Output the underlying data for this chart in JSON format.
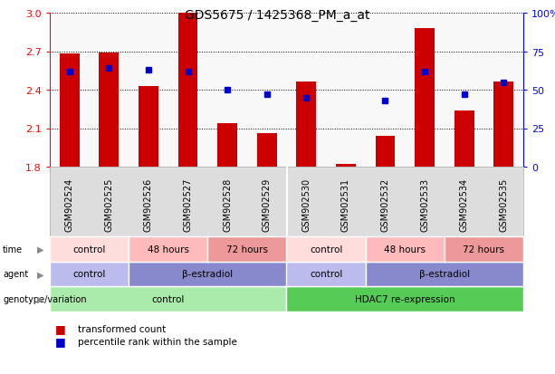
{
  "title": "GDS5675 / 1425368_PM_a_at",
  "samples": [
    "GSM902524",
    "GSM902525",
    "GSM902526",
    "GSM902527",
    "GSM902528",
    "GSM902529",
    "GSM902530",
    "GSM902531",
    "GSM902532",
    "GSM902533",
    "GSM902534",
    "GSM902535"
  ],
  "bar_values": [
    2.68,
    2.69,
    2.43,
    3.01,
    2.14,
    2.06,
    2.46,
    1.82,
    2.04,
    2.88,
    2.24,
    2.46
  ],
  "dot_values": [
    62,
    64,
    63,
    62,
    50,
    47,
    45,
    null,
    43,
    62,
    47,
    55
  ],
  "ymin": 1.8,
  "ymax": 3.0,
  "yticks": [
    1.8,
    2.1,
    2.4,
    2.7,
    3.0
  ],
  "y2ticks_pct": [
    0,
    25,
    50,
    75,
    100
  ],
  "bar_color": "#cc0000",
  "dot_color": "#0000cc",
  "bar_width": 0.5,
  "genotype_row": {
    "label": "genotype/variation",
    "groups": [
      {
        "text": "control",
        "span": [
          0,
          6
        ],
        "color": "#aaeaaa"
      },
      {
        "text": "HDAC7 re-expression",
        "span": [
          6,
          12
        ],
        "color": "#55cc55"
      }
    ]
  },
  "agent_row": {
    "label": "agent",
    "groups": [
      {
        "text": "control",
        "span": [
          0,
          2
        ],
        "color": "#bbbbee"
      },
      {
        "text": "β-estradiol",
        "span": [
          2,
          6
        ],
        "color": "#8888cc"
      },
      {
        "text": "control",
        "span": [
          6,
          8
        ],
        "color": "#bbbbee"
      },
      {
        "text": "β-estradiol",
        "span": [
          8,
          12
        ],
        "color": "#8888cc"
      }
    ]
  },
  "time_row": {
    "label": "time",
    "groups": [
      {
        "text": "control",
        "span": [
          0,
          2
        ],
        "color": "#ffdddd"
      },
      {
        "text": "48 hours",
        "span": [
          2,
          4
        ],
        "color": "#ffbbbb"
      },
      {
        "text": "72 hours",
        "span": [
          4,
          6
        ],
        "color": "#ee9999"
      },
      {
        "text": "control",
        "span": [
          6,
          8
        ],
        "color": "#ffdddd"
      },
      {
        "text": "48 hours",
        "span": [
          8,
          10
        ],
        "color": "#ffbbbb"
      },
      {
        "text": "72 hours",
        "span": [
          10,
          12
        ],
        "color": "#ee9999"
      }
    ]
  },
  "legend_items": [
    {
      "label": "transformed count",
      "color": "#cc0000"
    },
    {
      "label": "percentile rank within the sample",
      "color": "#0000cc"
    }
  ],
  "background_color": "#ffffff",
  "sample_bg_color": "#dddddd",
  "grid_color": "#dddddd"
}
